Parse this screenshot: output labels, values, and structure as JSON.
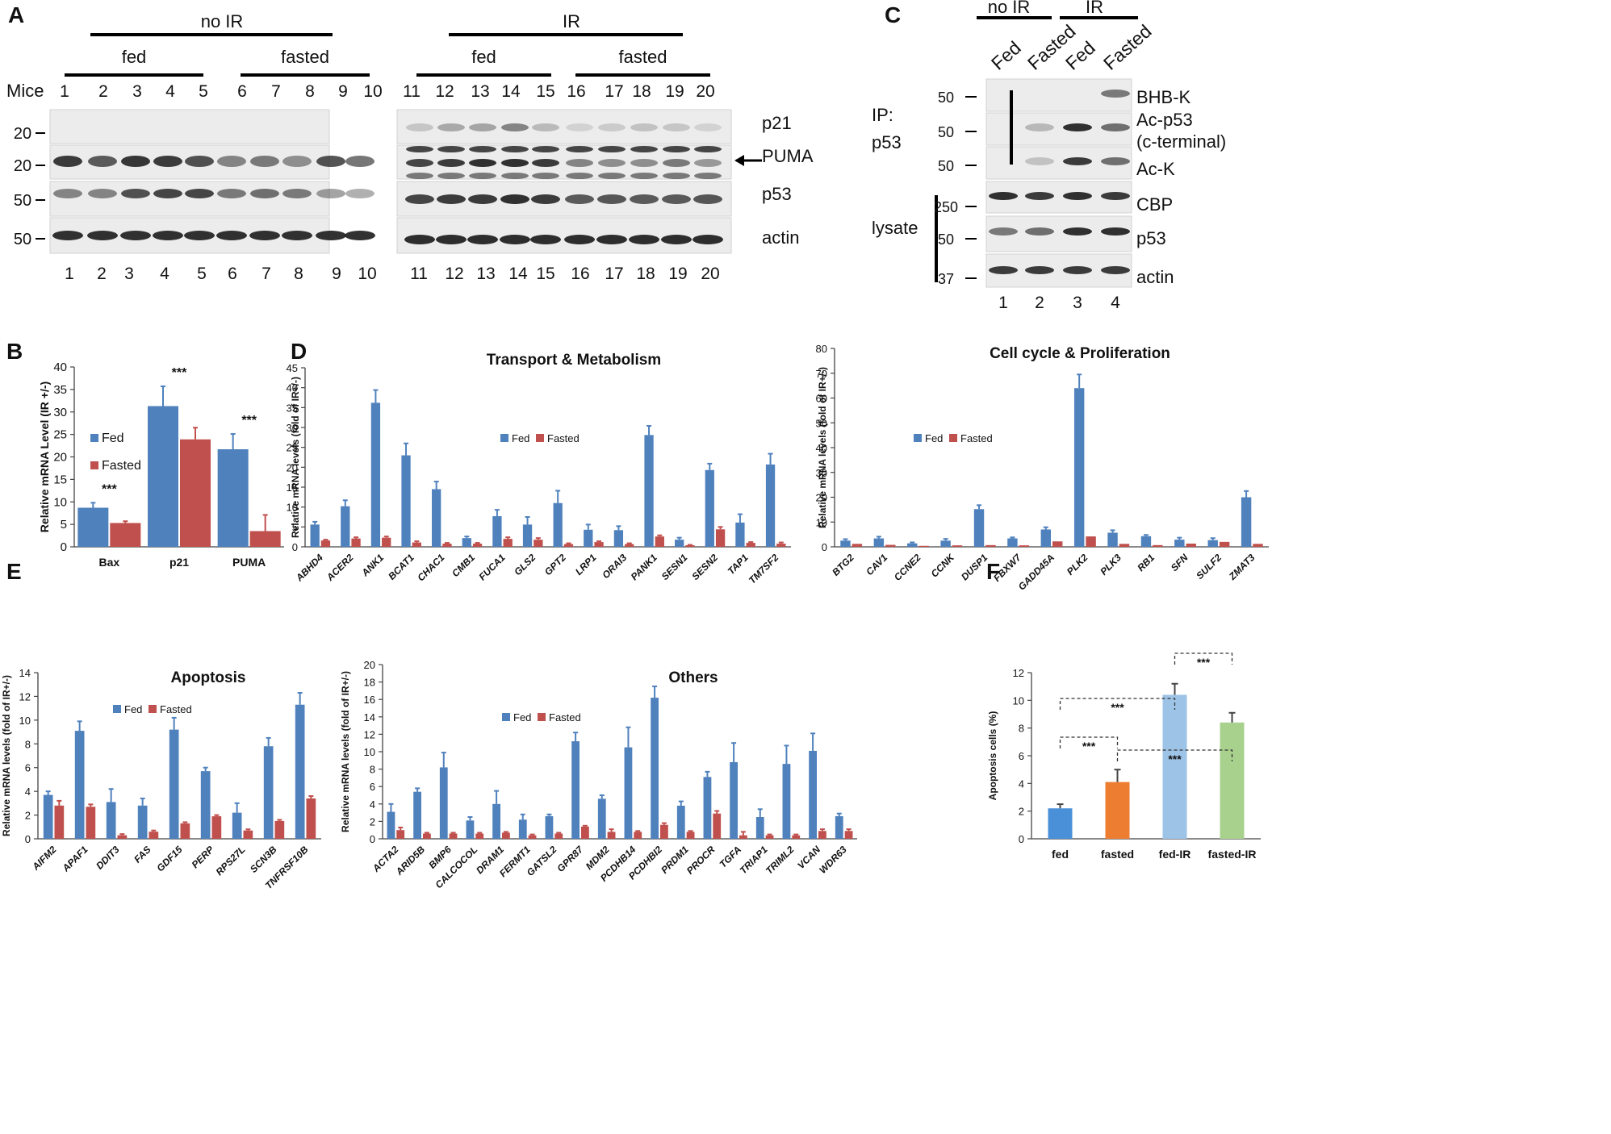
{
  "panel_letters": {
    "a": "A",
    "b": "B",
    "c": "C",
    "d": "D",
    "e": "E",
    "f": "F"
  },
  "panel_a": {
    "group_top": [
      "no IR",
      "IR"
    ],
    "group_sub": [
      "fed",
      "fasted",
      "fed",
      "fasted"
    ],
    "mice_label": "Mice",
    "lanes": [
      "1",
      "2",
      "3",
      "4",
      "5",
      "6",
      "7",
      "8",
      "9",
      "10",
      "11",
      "12",
      "13",
      "14",
      "15",
      "16",
      "17",
      "18",
      "19",
      "20"
    ],
    "mw_markers": [
      "20",
      "20",
      "50",
      "50"
    ],
    "bands": [
      "p21",
      "PUMA",
      "p53",
      "actin"
    ]
  },
  "panel_c": {
    "groups": [
      "no IR",
      "IR"
    ],
    "lane_headers": [
      "Fed",
      "Fasted",
      "Fed",
      "Fasted"
    ],
    "ip_label": [
      "IP:",
      "p53"
    ],
    "lysate_label": "lysate",
    "mw_markers": [
      "50",
      "50",
      "50",
      "250",
      "50",
      "37"
    ],
    "bands": [
      "BHB-K",
      "Ac-p53",
      "(c-terminal)",
      "Ac-K",
      "CBP",
      "p53",
      "actin"
    ],
    "lanes": [
      "1",
      "2",
      "3",
      "4"
    ]
  },
  "chart_data": [
    {
      "id": "B",
      "type": "bar",
      "title": "",
      "ylabel": "Relative mRNA Level (IR +/-)",
      "ylim": [
        0,
        40
      ],
      "yticks": [
        0,
        5,
        10,
        15,
        20,
        25,
        30,
        35,
        40
      ],
      "categories": [
        "Bax",
        "p21",
        "PUMA"
      ],
      "series": [
        {
          "name": "Fed",
          "color": "#4f81bd",
          "values": [
            8.7,
            31.3,
            21.7
          ],
          "errors": [
            1.1,
            4.4,
            3.4
          ]
        },
        {
          "name": "Fasted",
          "color": "#c0504d",
          "values": [
            5.3,
            23.9,
            3.5
          ],
          "errors": [
            0.4,
            2.6,
            3.6
          ]
        }
      ],
      "annotations": [
        "***",
        "***",
        "***"
      ]
    },
    {
      "id": "D1",
      "type": "bar",
      "title": "Transport & Metabolism",
      "ylabel": "Relative mRNA levels (fold of IR+/-)",
      "ylim": [
        0,
        45
      ],
      "yticks": [
        0,
        5,
        10,
        15,
        20,
        25,
        30,
        35,
        40,
        45
      ],
      "categories": [
        "ABHD4",
        "ACER2",
        "ANK1",
        "BCAT1",
        "CHAC1",
        "CMB1",
        "FUCA1",
        "GLS2",
        "GPT2",
        "LRP1",
        "ORAI3",
        "PANK1",
        "SESN1",
        "SESN2",
        "TAP1",
        "TM7SF2"
      ],
      "series": [
        {
          "name": "Fed",
          "color": "#4f81bd",
          "values": [
            5.6,
            10.2,
            36.2,
            23.0,
            14.5,
            2.2,
            7.7,
            5.6,
            11.0,
            4.3,
            4.2,
            28.1,
            1.8,
            19.3,
            6.1,
            20.7
          ],
          "errors": [
            0.7,
            1.5,
            3.2,
            3.0,
            1.9,
            0.4,
            1.6,
            1.9,
            3.1,
            1.3,
            1.0,
            2.3,
            0.5,
            1.6,
            2.1,
            2.7
          ]
        },
        {
          "name": "Fasted",
          "color": "#c0504d",
          "values": [
            1.6,
            2.1,
            2.3,
            1.1,
            0.8,
            0.8,
            2.0,
            1.8,
            0.7,
            1.2,
            0.7,
            2.6,
            0.4,
            4.4,
            1.0,
            0.8
          ],
          "errors": [
            0.2,
            0.3,
            0.3,
            0.3,
            0.2,
            0.2,
            0.4,
            0.4,
            0.2,
            0.2,
            0.2,
            0.3,
            0.1,
            0.6,
            0.2,
            0.3
          ]
        }
      ]
    },
    {
      "id": "D2",
      "type": "bar",
      "title": "Cell cycle & Proliferation",
      "ylabel": "Relative mRNA levels (fold of IR+/-)",
      "ylim": [
        0,
        80
      ],
      "yticks": [
        0,
        10,
        20,
        30,
        40,
        50,
        60,
        70,
        80
      ],
      "categories": [
        "BTG2",
        "CAV1",
        "CCNE2",
        "CCNK",
        "DUSP1",
        "FBXW7",
        "GADD45A",
        "PLK2",
        "PLK3",
        "RB1",
        "SFN",
        "SULF2",
        "ZMAT3"
      ],
      "series": [
        {
          "name": "Fed",
          "color": "#4f81bd",
          "values": [
            2.5,
            3.4,
            1.4,
            2.5,
            15.2,
            3.4,
            7.0,
            64.0,
            5.7,
            4.3,
            2.9,
            2.7,
            20.0
          ],
          "errors": [
            0.6,
            0.7,
            0.4,
            0.7,
            1.6,
            0.4,
            0.9,
            5.5,
            1.0,
            0.5,
            0.8,
            0.8,
            2.5
          ]
        },
        {
          "name": "Fasted",
          "color": "#c0504d",
          "values": [
            1.2,
            0.8,
            0.4,
            0.6,
            0.7,
            0.6,
            2.2,
            4.2,
            1.2,
            0.7,
            1.3,
            2.0,
            1.2
          ]
        }
      ]
    },
    {
      "id": "E1",
      "type": "bar",
      "title": "Apoptosis",
      "ylabel": "Relative mRNA levels (fold of IR+/-)",
      "ylim": [
        0,
        14
      ],
      "yticks": [
        0,
        2,
        4,
        6,
        8,
        10,
        12,
        14
      ],
      "categories": [
        "AIFM2",
        "APAF1",
        "DDIT3",
        "FAS",
        "GDF15",
        "PERP",
        "RPS27L",
        "SCN3B",
        "TNFRSF10B"
      ],
      "series": [
        {
          "name": "Fed",
          "color": "#4f81bd",
          "values": [
            3.7,
            9.1,
            3.1,
            2.8,
            9.2,
            5.7,
            2.2,
            7.8,
            11.3
          ],
          "errors": [
            0.3,
            0.8,
            1.1,
            0.6,
            1.0,
            0.3,
            0.8,
            0.7,
            1.0
          ]
        },
        {
          "name": "Fasted",
          "color": "#c0504d",
          "values": [
            2.8,
            2.7,
            0.3,
            0.6,
            1.3,
            1.9,
            0.7,
            1.5,
            3.4
          ],
          "errors": [
            0.4,
            0.2,
            0.1,
            0.1,
            0.1,
            0.1,
            0.1,
            0.1,
            0.2
          ]
        }
      ]
    },
    {
      "id": "E2",
      "type": "bar",
      "title": "Others",
      "ylabel": "Relative mRNA levels (fold of IR+/-)",
      "ylim": [
        0,
        20
      ],
      "yticks": [
        0,
        2,
        4,
        6,
        8,
        10,
        12,
        14,
        16,
        18,
        20
      ],
      "categories": [
        "ACTA2",
        "ARID5B",
        "BMP6",
        "CALCOCOL",
        "DRAM1",
        "FERMT1",
        "GATSL2",
        "GPR87",
        "MDM2",
        "PCDHB14",
        "PCDHBI2",
        "PRDM1",
        "PROCR",
        "TGFA",
        "TRIAP1",
        "TRIML2",
        "VCAN",
        "WDR63"
      ],
      "series": [
        {
          "name": "Fed",
          "color": "#4f81bd",
          "values": [
            3.1,
            5.4,
            8.2,
            2.1,
            4.0,
            2.2,
            2.6,
            11.2,
            4.6,
            10.5,
            16.2,
            3.8,
            7.1,
            8.8,
            2.5,
            8.6,
            10.1,
            2.6
          ],
          "errors": [
            0.9,
            0.4,
            1.7,
            0.4,
            1.5,
            0.6,
            0.2,
            1.0,
            0.4,
            2.3,
            1.3,
            0.5,
            0.6,
            2.2,
            0.9,
            2.1,
            2.0,
            0.3
          ]
        },
        {
          "name": "Fasted",
          "color": "#c0504d",
          "values": [
            1.0,
            0.6,
            0.6,
            0.6,
            0.7,
            0.4,
            0.6,
            1.4,
            0.8,
            0.8,
            1.6,
            0.8,
            2.9,
            0.4,
            0.4,
            0.4,
            0.9,
            0.9
          ],
          "errors": [
            0.3,
            0.1,
            0.1,
            0.1,
            0.1,
            0.1,
            0.1,
            0.1,
            0.3,
            0.1,
            0.2,
            0.1,
            0.3,
            0.4,
            0.1,
            0.1,
            0.2,
            0.2
          ]
        }
      ]
    },
    {
      "id": "F",
      "type": "bar",
      "title": "",
      "ylabel": "Apoptosis cells (%)",
      "ylim": [
        0,
        12
      ],
      "yticks": [
        0,
        2,
        4,
        6,
        8,
        10,
        12
      ],
      "categories": [
        "fed",
        "fasted",
        "fed-IR",
        "fasted-IR"
      ],
      "values": [
        2.2,
        4.1,
        10.4,
        8.4
      ],
      "errors": [
        0.3,
        0.9,
        0.8,
        0.7
      ],
      "colors": [
        "#4a90d9",
        "#ed7d31",
        "#9dc3e6",
        "#a9d18e"
      ],
      "annotations": [
        "***",
        "***",
        "***",
        "***"
      ]
    }
  ]
}
